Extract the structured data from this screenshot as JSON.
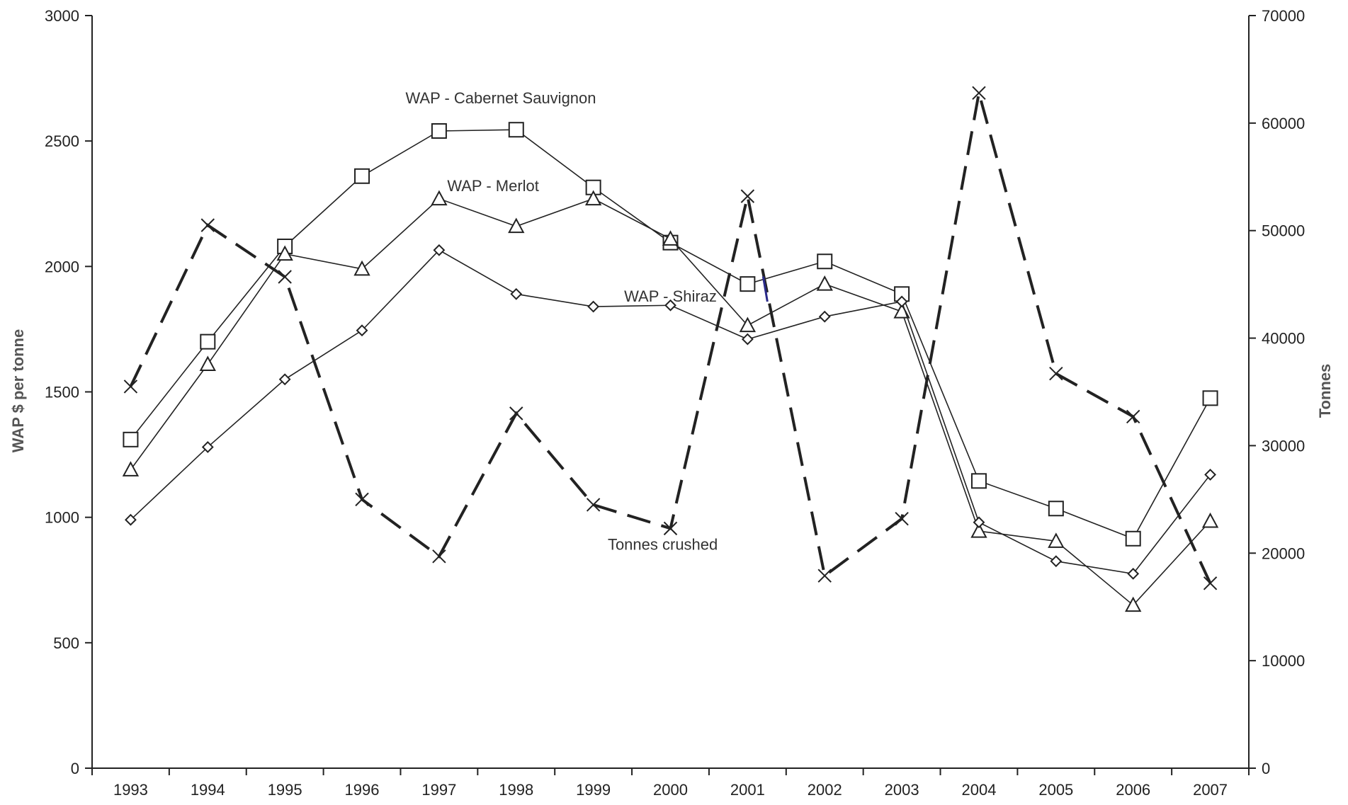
{
  "chart_data": {
    "type": "line",
    "title": "",
    "x": [
      "1993",
      "1994",
      "1995",
      "1996",
      "1997",
      "1998",
      "1999",
      "2000",
      "2001",
      "2002",
      "2003",
      "2004",
      "2005",
      "2006",
      "2007"
    ],
    "ylabel_left": "WAP $ per tonne",
    "ylabel_right": "Tonnes",
    "ylim_left": [
      0,
      3000
    ],
    "ylim_right": [
      0,
      70000
    ],
    "yticks_left": [
      "0",
      "500",
      "1000",
      "1500",
      "2000",
      "2500",
      "3000"
    ],
    "yticks_right": [
      "0",
      "10000",
      "20000",
      "30000",
      "40000",
      "50000",
      "60000",
      "70000"
    ],
    "grid": false,
    "series": [
      {
        "name": "WAP - Cabernet Sauvignon",
        "axis": "left",
        "marker": "square",
        "style": "solid",
        "values": [
          1310,
          1700,
          2080,
          2360,
          2540,
          2545,
          2315,
          2095,
          1930,
          2020,
          1890,
          1145,
          1035,
          915,
          1475
        ]
      },
      {
        "name": "WAP - Merlot",
        "axis": "left",
        "marker": "triangle",
        "style": "solid",
        "values": [
          1190,
          1610,
          2050,
          1990,
          2270,
          2160,
          2270,
          2110,
          1765,
          1930,
          1820,
          945,
          905,
          650,
          985
        ]
      },
      {
        "name": "WAP - Shiraz",
        "axis": "left",
        "marker": "diamond",
        "style": "solid",
        "values": [
          990,
          1280,
          1550,
          1745,
          2065,
          1890,
          1840,
          1845,
          1710,
          1800,
          1860,
          980,
          825,
          775,
          1170
        ]
      },
      {
        "name": "Tonnes crushed",
        "axis": "right",
        "marker": "x",
        "style": "dashed",
        "values": [
          35500,
          50500,
          45700,
          25000,
          19700,
          33000,
          24500,
          22300,
          53200,
          17900,
          23200,
          62800,
          36700,
          32700,
          17200
        ]
      }
    ],
    "annotations": [
      {
        "text": "WAP - Cabernet Sauvignon",
        "x": "1997.8",
        "y": 2650
      },
      {
        "text": "WAP - Merlot",
        "x": "1997.7",
        "y": 2300
      },
      {
        "text": "WAP - Shiraz",
        "x": "2000.0",
        "y": 1860
      },
      {
        "text": "Tonnes crushed",
        "x": "1999.9",
        "y": 870
      }
    ],
    "colors": {
      "lines": "#222222",
      "accent_tick": "#2a2a8a"
    }
  }
}
